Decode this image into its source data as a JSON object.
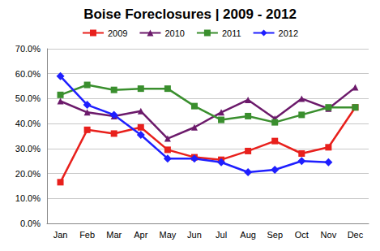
{
  "chart_data": {
    "type": "line",
    "title": "Boise Foreclosures | 2009 - 2012",
    "categories": [
      "Jan",
      "Feb",
      "Mar",
      "Apr",
      "May",
      "Jun",
      "Jul",
      "Aug",
      "Sep",
      "Oct",
      "Nov",
      "Dec"
    ],
    "series": [
      {
        "name": "2009",
        "color": "#e8201c",
        "marker": "square",
        "values": [
          16.5,
          37.5,
          36,
          38.5,
          29.5,
          26.5,
          25.5,
          29,
          33,
          28,
          30.5,
          46.5
        ]
      },
      {
        "name": "2010",
        "color": "#6c1a6b",
        "marker": "triangle",
        "values": [
          49,
          44.5,
          43,
          45,
          34,
          38.5,
          44.5,
          49.5,
          42,
          50,
          46,
          54.5
        ]
      },
      {
        "name": "2011",
        "color": "#3a8f2e",
        "marker": "square",
        "values": [
          51.5,
          55.5,
          53.5,
          54,
          54,
          47,
          41.5,
          43,
          40.5,
          43.5,
          46.5,
          46.5
        ]
      },
      {
        "name": "2012",
        "color": "#1f1fff",
        "marker": "diamond",
        "values": [
          59,
          47.5,
          43.5,
          35.5,
          26,
          26,
          24.5,
          20.5,
          21.5,
          25,
          24.5,
          null
        ]
      }
    ],
    "ylim": [
      0,
      70
    ],
    "yticks": [
      {
        "value": 0,
        "label": "0.0%"
      },
      {
        "value": 10,
        "label": "10.0%"
      },
      {
        "value": 20,
        "label": "20.0%"
      },
      {
        "value": 30,
        "label": "30.0%"
      },
      {
        "value": 40,
        "label": "40.0%"
      },
      {
        "value": 50,
        "label": "50.0%"
      },
      {
        "value": 60,
        "label": "60.0%"
      },
      {
        "value": 70,
        "label": "70.0%"
      }
    ],
    "grid": true,
    "legend": "top"
  }
}
